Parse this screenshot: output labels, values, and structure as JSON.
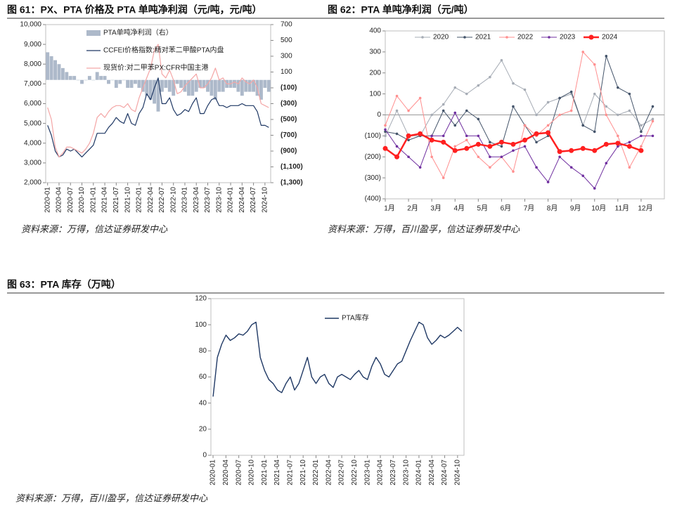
{
  "chart_data": [
    {
      "type": "combo",
      "title": "图 61：PX、PTA 价格及 PTA 单吨净利润（元/吨，元/吨）",
      "source": "资料来源：万得，信达证券研发中心",
      "x": [
        "2020-01",
        "2020-02",
        "2020-03",
        "2020-04",
        "2020-05",
        "2020-06",
        "2020-07",
        "2020-08",
        "2020-09",
        "2020-10",
        "2020-11",
        "2020-12",
        "2021-01",
        "2021-02",
        "2021-03",
        "2021-04",
        "2021-05",
        "2021-06",
        "2021-07",
        "2021-08",
        "2021-09",
        "2021-10",
        "2021-11",
        "2021-12",
        "2022-01",
        "2022-02",
        "2022-03",
        "2022-04",
        "2022-05",
        "2022-06",
        "2022-07",
        "2022-08",
        "2022-09",
        "2022-10",
        "2022-11",
        "2022-12",
        "2023-01",
        "2023-02",
        "2023-03",
        "2023-04",
        "2023-05",
        "2023-06",
        "2023-07",
        "2023-08",
        "2023-09",
        "2023-10",
        "2023-11",
        "2023-12",
        "2024-01",
        "2024-02",
        "2024-03",
        "2024-04",
        "2024-05",
        "2024-06",
        "2024-07",
        "2024-08",
        "2024-09",
        "2024-10",
        "2024-11"
      ],
      "xticks": [
        "2020-01",
        "2020-04",
        "2020-07",
        "2020-10",
        "2021-01",
        "2021-04",
        "2021-07",
        "2021-10",
        "2022-01",
        "2022-04",
        "2022-07",
        "2022-10",
        "2023-01",
        "2023-04",
        "2023-07",
        "2023-10",
        "2024-01",
        "2024-04",
        "2024-07",
        "2024-10"
      ],
      "ylim": [
        2000,
        10000
      ],
      "yticks": [
        {
          "value": 2000,
          "label": "2,000"
        },
        {
          "value": 3000,
          "label": "3,000"
        },
        {
          "value": 4000,
          "label": "4,000"
        },
        {
          "value": 5000,
          "label": "5,000"
        },
        {
          "value": 6000,
          "label": "6,000"
        },
        {
          "value": 7000,
          "label": "7,000"
        },
        {
          "value": 8000,
          "label": "8,000"
        },
        {
          "value": 9000,
          "label": "9,000"
        },
        {
          "value": 10000,
          "label": "10,000"
        }
      ],
      "y2lim": [
        -1300,
        700
      ],
      "y2ticks": [
        700,
        500,
        300,
        100,
        {
          "value": -100,
          "label": "(100)"
        },
        {
          "value": -300,
          "label": "(300)"
        },
        {
          "value": -500,
          "label": "(500)"
        },
        {
          "value": -700,
          "label": "(700)"
        },
        {
          "value": -900,
          "label": "(900)"
        },
        {
          "value": -1100,
          "label": "(1,100)"
        },
        {
          "value": -1300,
          "label": "(1,300)"
        }
      ],
      "y2_negative_tick_color": "#e00000",
      "legend": "upper left",
      "series": [
        {
          "name": "PTA单吨净利润（右）",
          "type": "bar",
          "axis": "y2",
          "color": "#adb9ca",
          "values": [
            350,
            300,
            250,
            200,
            150,
            100,
            50,
            50,
            0,
            -50,
            0,
            50,
            0,
            100,
            50,
            50,
            -50,
            0,
            -100,
            -50,
            0,
            -100,
            -100,
            -50,
            -100,
            -150,
            -200,
            -250,
            -300,
            -400,
            -150,
            -100,
            -150,
            -200,
            -50,
            -100,
            -150,
            -200,
            -200,
            -150,
            -100,
            -100,
            -150,
            -200,
            -250,
            -150,
            -150,
            -100,
            -100,
            -100,
            -150,
            -200,
            -150,
            -150,
            -150,
            -200,
            -250,
            -100,
            -150
          ]
        },
        {
          "name": "CCFEI价格指数:精对苯二甲酸PTA内盘",
          "type": "line",
          "color": "#1f3864",
          "line_width": 1.2,
          "values": [
            4900,
            4400,
            3600,
            3300,
            3400,
            3700,
            3600,
            3700,
            3500,
            3300,
            3500,
            3700,
            3900,
            4500,
            4500,
            4500,
            4800,
            5000,
            5300,
            5100,
            5000,
            5500,
            5000,
            4900,
            5500,
            5800,
            6500,
            6200,
            6800,
            7300,
            6000,
            6000,
            6300,
            5700,
            5400,
            5500,
            5700,
            5600,
            6000,
            6300,
            5500,
            5500,
            5900,
            6200,
            6300,
            5900,
            5900,
            5800,
            5900,
            5900,
            5900,
            6000,
            5900,
            5900,
            5900,
            5600,
            4900,
            4900,
            4800
          ]
        },
        {
          "name": "现货价:对二甲苯PX:CFR中国主港",
          "type": "line",
          "color": "#f4a6a6",
          "line_width": 1.2,
          "values": [
            5800,
            5200,
            3800,
            3300,
            3500,
            3800,
            3800,
            3700,
            3600,
            3500,
            3700,
            4000,
            4500,
            5300,
            5500,
            5300,
            5600,
            5800,
            5900,
            5900,
            5800,
            6000,
            5700,
            5600,
            6300,
            6800,
            7300,
            7800,
            8700,
            9000,
            7500,
            7300,
            7700,
            7200,
            6500,
            6600,
            6900,
            7100,
            7300,
            7500,
            6800,
            6800,
            7000,
            7300,
            7800,
            7200,
            7300,
            7000,
            7000,
            7100,
            7000,
            7300,
            7100,
            7000,
            7200,
            6800,
            6000,
            5900,
            5800
          ]
        }
      ]
    },
    {
      "type": "line",
      "title": "图 62：PTA 单吨净利润（元/吨）",
      "source": "资料来源：万得，百川盈孚，信达证券研发中心",
      "x": [
        1,
        1.5,
        2,
        2.5,
        3,
        3.5,
        4,
        4.5,
        5,
        5.5,
        6,
        6.5,
        7,
        7.5,
        8,
        8.5,
        9,
        9.5,
        10,
        10.5,
        11,
        11.5,
        12,
        12.5
      ],
      "xlim": [
        1,
        13
      ],
      "xticks": [
        {
          "value": 1,
          "label": "1月"
        },
        {
          "value": 2,
          "label": "2月"
        },
        {
          "value": 3,
          "label": "3月"
        },
        {
          "value": 4,
          "label": "4月"
        },
        {
          "value": 5,
          "label": "5月"
        },
        {
          "value": 6,
          "label": "6月"
        },
        {
          "value": 7,
          "label": "7月"
        },
        {
          "value": 8,
          "label": "8月"
        },
        {
          "value": 9,
          "label": "9月"
        },
        {
          "value": 10,
          "label": "10月"
        },
        {
          "value": 11,
          "label": "11月"
        },
        {
          "value": 12,
          "label": "12月"
        }
      ],
      "ylim": [
        -400,
        400
      ],
      "yticks": [
        400,
        300,
        200,
        100,
        0,
        {
          "value": -100,
          "label": "(100)"
        },
        {
          "value": -200,
          "label": "(200)"
        },
        {
          "value": -300,
          "label": "(300)"
        },
        {
          "value": -400,
          "label": "(400)"
        }
      ],
      "zero_line": true,
      "legend": "top",
      "series": [
        {
          "name": "2020",
          "color": "#a6acb5",
          "line_width": 1,
          "marker_size": 1.8,
          "values": [
            -100,
            20,
            -100,
            -100,
            0,
            50,
            130,
            100,
            140,
            180,
            260,
            150,
            120,
            0,
            60,
            80,
            100,
            -50,
            100,
            40,
            0,
            20,
            -50,
            -20
          ]
        },
        {
          "name": "2021",
          "color": "#44546a",
          "line_width": 1,
          "marker_size": 1.8,
          "values": [
            -80,
            -90,
            -120,
            -100,
            -100,
            20,
            -50,
            20,
            -20,
            -130,
            -150,
            40,
            -50,
            -130,
            -100,
            80,
            110,
            -50,
            -80,
            280,
            130,
            100,
            -80,
            40
          ]
        },
        {
          "name": "2022",
          "color": "#ff8f8f",
          "line_width": 1,
          "marker_size": 1.8,
          "values": [
            -50,
            90,
            20,
            80,
            -200,
            -300,
            -150,
            -120,
            -200,
            -250,
            -200,
            -270,
            -50,
            -100,
            -50,
            0,
            20,
            300,
            240,
            0,
            -100,
            -250,
            -150,
            -30
          ]
        },
        {
          "name": "2023",
          "color": "#7030a0",
          "line_width": 1,
          "marker_size": 1.8,
          "values": [
            -70,
            -150,
            -200,
            -250,
            -100,
            -100,
            10,
            -100,
            -100,
            -200,
            -200,
            -170,
            -150,
            -250,
            -320,
            -200,
            -250,
            -290,
            -350,
            -230,
            -150,
            -130,
            -100,
            -100
          ]
        },
        {
          "name": "2024",
          "color": "#ff2020",
          "line_width": 2.5,
          "marker_size": 3.5,
          "values": [
            -160,
            -200,
            -100,
            -90,
            -120,
            -130,
            -170,
            -160,
            -140,
            -150,
            -130,
            -140,
            -120,
            -90,
            -85,
            -175,
            -170,
            -160,
            -170,
            -140,
            -135,
            -150,
            -170,
            null
          ]
        }
      ]
    },
    {
      "type": "line",
      "title": "图 63：PTA 库存（万吨）",
      "source": "资料来源：万得，百川盈孚，信达证券研发中心",
      "x": [
        "2020-01",
        "2020-02",
        "2020-03",
        "2020-04",
        "2020-05",
        "2020-06",
        "2020-07",
        "2020-08",
        "2020-09",
        "2020-10",
        "2020-11",
        "2020-12",
        "2021-01",
        "2021-02",
        "2021-03",
        "2021-04",
        "2021-05",
        "2021-06",
        "2021-07",
        "2021-08",
        "2021-09",
        "2021-10",
        "2021-11",
        "2021-12",
        "2022-01",
        "2022-02",
        "2022-03",
        "2022-04",
        "2022-05",
        "2022-06",
        "2022-07",
        "2022-08",
        "2022-09",
        "2022-10",
        "2022-11",
        "2022-12",
        "2023-01",
        "2023-02",
        "2023-03",
        "2023-04",
        "2023-05",
        "2023-06",
        "2023-07",
        "2023-08",
        "2023-09",
        "2023-10",
        "2023-11",
        "2023-12",
        "2024-01",
        "2024-02",
        "2024-03",
        "2024-04",
        "2024-05",
        "2024-06",
        "2024-07",
        "2024-08",
        "2024-09",
        "2024-10",
        "2024-11"
      ],
      "xticks": [
        "2020-01",
        "2020-04",
        "2020-07",
        "2020-10",
        "2021-01",
        "2021-04",
        "2021-07",
        "2021-10",
        "2022-01",
        "2022-04",
        "2022-07",
        "2022-10",
        "2023-01",
        "2023-04",
        "2023-07",
        "2023-10",
        "2024-01",
        "2024-04",
        "2024-07",
        "2024-10"
      ],
      "ylim": [
        0,
        120
      ],
      "yticks": [
        0,
        20,
        40,
        60,
        80,
        100,
        120
      ],
      "legend": "upper center",
      "series": [
        {
          "name": "PTA库存",
          "color": "#1f3864",
          "line_width": 1.4,
          "values": [
            45,
            75,
            85,
            92,
            88,
            90,
            93,
            92,
            95,
            100,
            102,
            75,
            65,
            58,
            55,
            50,
            48,
            55,
            60,
            50,
            55,
            65,
            75,
            60,
            55,
            60,
            62,
            55,
            52,
            60,
            62,
            60,
            58,
            62,
            65,
            60,
            58,
            68,
            75,
            70,
            62,
            60,
            65,
            70,
            72,
            80,
            88,
            95,
            102,
            100,
            90,
            85,
            88,
            92,
            90,
            92,
            95,
            98,
            95
          ]
        }
      ]
    }
  ]
}
